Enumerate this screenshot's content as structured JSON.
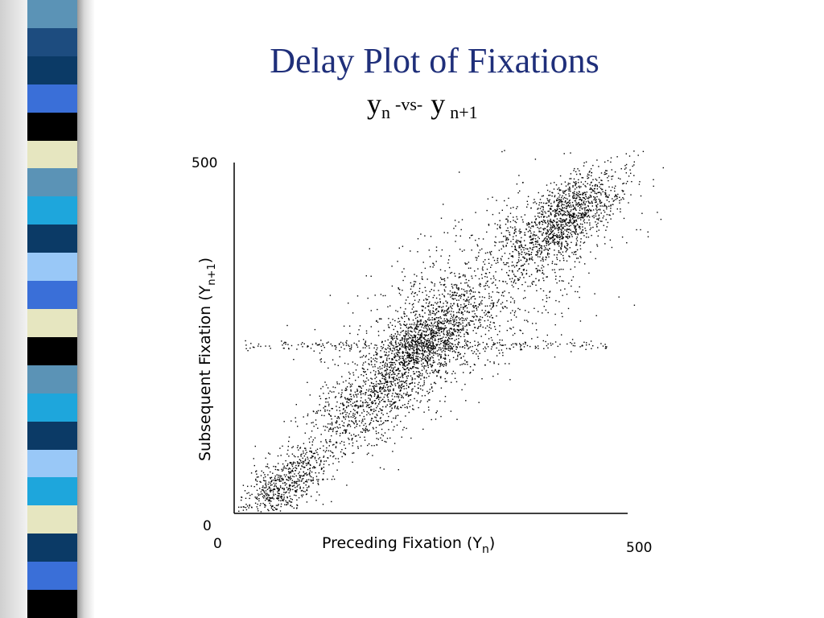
{
  "slide": {
    "title": "Delay Plot of Fixations",
    "subtitle": {
      "y1": "y",
      "sub1": "n",
      "vs": "-vs-",
      "y2": "y",
      "sub2": "n+1"
    }
  },
  "sidebar": {
    "stripe_colors": [
      "#5b93b6",
      "#1d4c7f",
      "#0b3a66",
      "#3a6fd8",
      "#000000",
      "#e6e6c0",
      "#5b93b6",
      "#1ea6dc",
      "#0b3a66",
      "#99c8f7",
      "#3a6fd8",
      "#e6e6c0",
      "#000000",
      "#5b93b6",
      "#1ea6dc",
      "#0b3a66",
      "#99c8f7",
      "#1ea6dc",
      "#e6e6c0",
      "#0b3a66",
      "#3a6fd8",
      "#000000"
    ]
  },
  "chart_data": {
    "type": "scatter",
    "xlabel_main": "Preceding Fixation (Y",
    "xlabel_sub": "n",
    "xlabel_end": ")",
    "ylabel_main": "Subsequent Fixation   (Y",
    "ylabel_sub": "n+1",
    "ylabel_end": ")",
    "xlim": [
      0,
      500
    ],
    "ylim": [
      0,
      500
    ],
    "x_tick_labels": [
      "0",
      "500"
    ],
    "y_tick_labels": [
      "0",
      "500"
    ],
    "grid": false,
    "clusters": [
      {
        "center": [
          60,
          40
        ],
        "count": 700,
        "spread": 40
      },
      {
        "center": [
          175,
          165
        ],
        "count": 900,
        "spread": 55
      },
      {
        "center": [
          245,
          250
        ],
        "count": 1100,
        "spread": 45
      },
      {
        "center": [
          420,
          420
        ],
        "count": 1200,
        "spread": 45
      },
      {
        "center": [
          300,
          300
        ],
        "count": 1200,
        "spread": 110
      }
    ],
    "horizontal_band": {
      "y": 240,
      "count": 250
    }
  }
}
